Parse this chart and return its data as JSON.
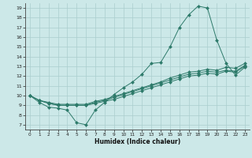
{
  "xlabel": "Humidex (Indice chaleur)",
  "background_color": "#cce8e8",
  "grid_color": "#b0d0d0",
  "line_color": "#2d7a6a",
  "xlim": [
    -0.5,
    23.5
  ],
  "ylim": [
    6.5,
    19.5
  ],
  "xticks": [
    0,
    1,
    2,
    3,
    4,
    5,
    6,
    7,
    8,
    9,
    10,
    11,
    12,
    13,
    14,
    15,
    16,
    17,
    18,
    19,
    20,
    21,
    22,
    23
  ],
  "yticks": [
    7,
    8,
    9,
    10,
    11,
    12,
    13,
    14,
    15,
    16,
    17,
    18,
    19
  ],
  "curve1_x": [
    0,
    1,
    2,
    3,
    4,
    5,
    6,
    7,
    8,
    9,
    10,
    11,
    12,
    13,
    14,
    15,
    16,
    17,
    18,
    19,
    20,
    21,
    22,
    23
  ],
  "curve1_y": [
    10.0,
    9.3,
    8.8,
    8.7,
    8.5,
    7.2,
    7.0,
    8.5,
    9.3,
    10.1,
    10.8,
    11.4,
    12.2,
    13.3,
    13.4,
    15.0,
    17.0,
    18.3,
    19.2,
    19.0,
    15.7,
    13.3,
    12.1,
    12.9
  ],
  "curve2_x": [
    0,
    1,
    2,
    3,
    4,
    5,
    6,
    7,
    8,
    9,
    10,
    11,
    12,
    13,
    14,
    15,
    16,
    17,
    18,
    19,
    20,
    21,
    22,
    23
  ],
  "curve2_y": [
    10.0,
    9.5,
    9.2,
    9.0,
    9.0,
    9.0,
    9.0,
    9.2,
    9.4,
    9.6,
    9.9,
    10.2,
    10.5,
    10.8,
    11.1,
    11.4,
    11.7,
    12.0,
    12.1,
    12.3,
    12.2,
    12.5,
    12.4,
    13.0
  ],
  "curve3_x": [
    0,
    1,
    2,
    3,
    4,
    5,
    6,
    7,
    8,
    9,
    10,
    11,
    12,
    13,
    14,
    15,
    16,
    17,
    18,
    19,
    20,
    21,
    22,
    23
  ],
  "curve3_y": [
    10.0,
    9.5,
    9.2,
    9.0,
    9.0,
    9.0,
    9.0,
    9.3,
    9.5,
    9.8,
    10.1,
    10.4,
    10.7,
    11.0,
    11.3,
    11.6,
    11.9,
    12.2,
    12.3,
    12.5,
    12.4,
    12.6,
    12.5,
    13.1
  ],
  "curve4_x": [
    0,
    1,
    2,
    3,
    4,
    5,
    6,
    7,
    8,
    9,
    10,
    11,
    12,
    13,
    14,
    15,
    16,
    17,
    18,
    19,
    20,
    21,
    22,
    23
  ],
  "curve4_y": [
    10.0,
    9.5,
    9.3,
    9.1,
    9.1,
    9.1,
    9.1,
    9.4,
    9.6,
    9.9,
    10.2,
    10.5,
    10.8,
    11.1,
    11.4,
    11.8,
    12.1,
    12.4,
    12.5,
    12.7,
    12.6,
    12.9,
    12.8,
    13.3
  ]
}
